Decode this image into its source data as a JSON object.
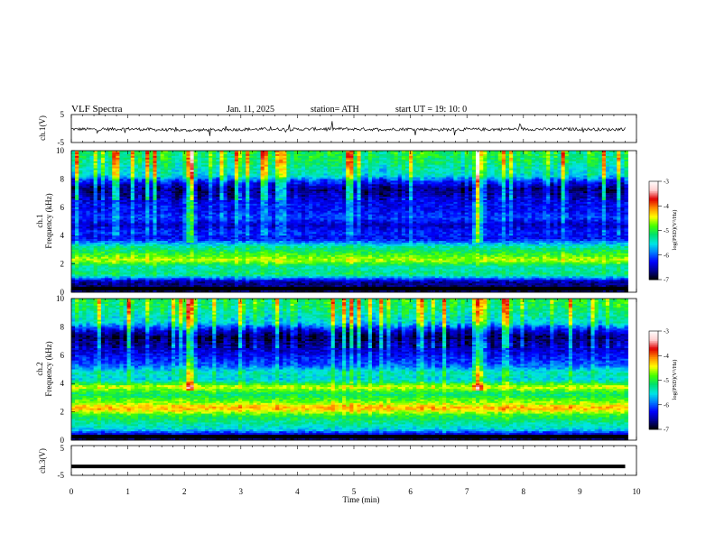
{
  "header": {
    "title": "VLF  Spectra",
    "date": "Jan.  11,  2025",
    "station": "station= ATH",
    "start_ut": "start  UT  =   19: 10: 0"
  },
  "axes": {
    "ch1_voltage_label": "ch.1(V)",
    "ch1_label": "ch.1",
    "ch2_label": "ch.2",
    "frequency_label": "Frequency  (kHz)",
    "ch3_voltage_label": "ch.3(V)",
    "time_label": "Time  (min)",
    "time_ticks": [
      "0",
      "1",
      "2",
      "3",
      "4",
      "5",
      "6",
      "7",
      "8",
      "9",
      "10"
    ],
    "freq_ticks": [
      "0",
      "2",
      "4",
      "6",
      "8",
      "10"
    ],
    "voltage_ticks_top": "5",
    "voltage_ticks_bottom": "-5"
  },
  "colorbars": [
    {
      "label": "log(PSD)(V²/Hz)",
      "ticks": [
        "-3",
        "-4",
        "-5",
        "-6",
        "-7"
      ]
    },
    {
      "label": "log(PSD)(V²/Hz)",
      "ticks": [
        "-3",
        "-4",
        "-5",
        "-6",
        "-7"
      ]
    }
  ],
  "colors": {
    "scale": [
      "#000000",
      "#000090",
      "#0000ff",
      "#0078ff",
      "#00e6e6",
      "#00e070",
      "#44ff00",
      "#ffff00",
      "#ff8c00",
      "#e00000",
      "#ffd0d0",
      "#ffffff"
    ]
  },
  "chart_data": [
    {
      "type": "line",
      "name": "ch.1 waveform",
      "ylim": [
        -5,
        5
      ],
      "xlim": [
        0,
        10
      ],
      "x": [
        0,
        0.5,
        1,
        1.5,
        2,
        2.5,
        3,
        3.5,
        4,
        4.5,
        5,
        5.5,
        6,
        6.5,
        7,
        7.5,
        8,
        8.5,
        9,
        9.5,
        9.8
      ],
      "y": [
        -0.2,
        -0.3,
        -0.1,
        -0.4,
        -0.6,
        -0.5,
        -0.3,
        -0.2,
        -0.3,
        -0.1,
        -0.2,
        -0.3,
        -0.2,
        -0.4,
        -0.3,
        -0.3,
        -0.2,
        -0.3,
        -0.2,
        -0.4,
        -0.1
      ]
    },
    {
      "type": "heatmap",
      "name": "ch.1 spectrogram",
      "xlim": [
        0,
        10
      ],
      "ylim": [
        0,
        10
      ],
      "zlim": [
        -7,
        -3
      ],
      "data_end_min": 9.85,
      "freq_khz": [
        0.25,
        0.75,
        1.25,
        1.75,
        2.25,
        2.75,
        3.25,
        3.75,
        4.25,
        4.75,
        5.25,
        5.75,
        6.25,
        6.75,
        7.25,
        7.75,
        8.25,
        8.75,
        9.25,
        9.75
      ],
      "log_psd_profile": [
        -6.8,
        -6.6,
        -5.2,
        -5.4,
        -4.6,
        -5.0,
        -5.4,
        -6.3,
        -6.2,
        -6.5,
        -6.1,
        -6.3,
        -6.3,
        -6.5,
        -6.7,
        -6.3,
        -5.5,
        -5.4,
        -5.2,
        -5.1
      ],
      "burst_times_min": [
        2.1,
        7.2
      ]
    },
    {
      "type": "heatmap",
      "name": "ch.2 spectrogram",
      "xlim": [
        0,
        10
      ],
      "ylim": [
        0,
        10
      ],
      "zlim": [
        -7,
        -3
      ],
      "data_end_min": 9.85,
      "freq_khz": [
        0.25,
        0.75,
        1.25,
        1.75,
        2.25,
        2.75,
        3.25,
        3.75,
        4.25,
        4.75,
        5.25,
        5.75,
        6.25,
        6.75,
        7.25,
        7.75,
        8.25,
        8.75,
        9.25,
        9.75
      ],
      "log_psd_profile": [
        -6.8,
        -5.6,
        -5.3,
        -5.0,
        -4.2,
        -4.8,
        -5.2,
        -4.5,
        -5.6,
        -5.4,
        -6.0,
        -6.2,
        -6.4,
        -6.6,
        -6.8,
        -6.4,
        -5.6,
        -5.4,
        -5.2,
        -5.1
      ],
      "burst_times_min": [
        2.1,
        7.2
      ]
    },
    {
      "type": "line",
      "name": "ch.3 waveform",
      "ylim": [
        -5,
        5
      ],
      "xlim": [
        0,
        10
      ],
      "x": [
        0,
        9.8
      ],
      "y": [
        -2,
        -2
      ]
    }
  ]
}
